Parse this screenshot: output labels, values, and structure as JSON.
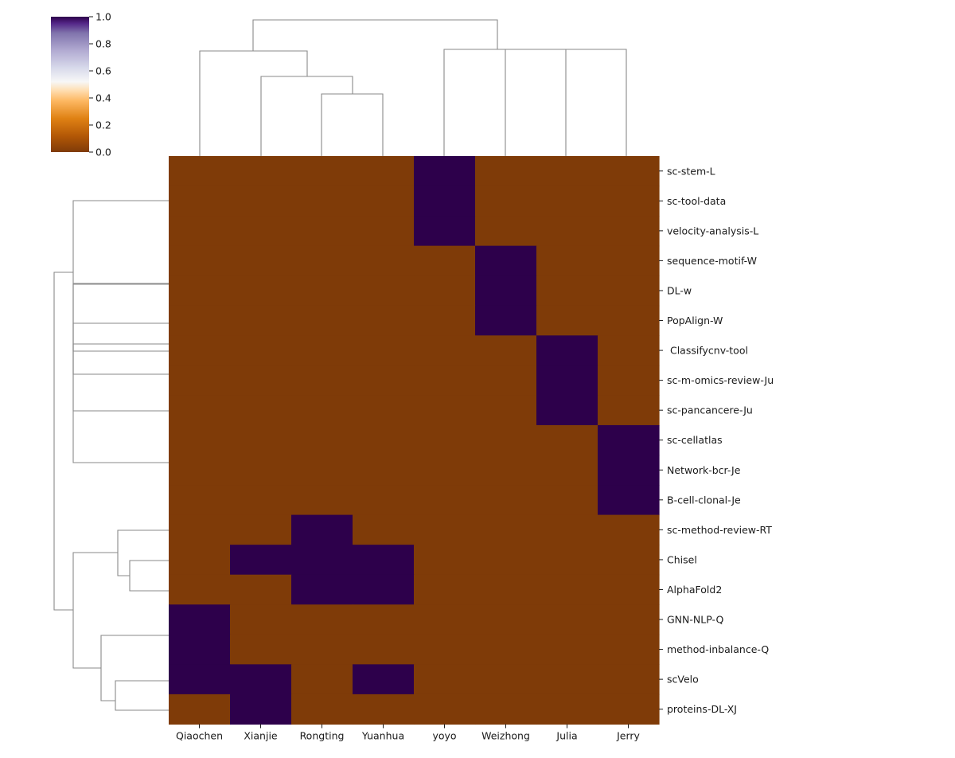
{
  "chart_data": {
    "type": "heatmap",
    "subtype": "clustermap",
    "columns": [
      "Qiaochen",
      "Xianjie",
      "Rongting",
      "Yuanhua",
      "yoyo",
      "Weizhong",
      "Julia",
      "Jerry"
    ],
    "rows": [
      "sc-stem-L",
      "sc-tool-data",
      "velocity-analysis-L",
      "sequence-motif-W",
      "DL-w",
      "PopAlign-W",
      " Classifycnv-tool",
      "sc-m-omics-review-Ju",
      "sc-pancancere-Ju",
      "sc-cellatlas",
      "Network-bcr-Je",
      "B-cell-clonal-Je",
      "sc-method-review-RT",
      "Chisel",
      "AlphaFold2",
      "GNN-NLP-Q",
      "method-inbalance-Q",
      "scVelo",
      "proteins-DL-XJ"
    ],
    "values": [
      [
        0,
        0,
        0,
        0,
        1,
        0,
        0,
        0
      ],
      [
        0,
        0,
        0,
        0,
        1,
        0,
        0,
        0
      ],
      [
        0,
        0,
        0,
        0,
        1,
        0,
        0,
        0
      ],
      [
        0,
        0,
        0,
        0,
        0,
        1,
        0,
        0
      ],
      [
        0,
        0,
        0,
        0,
        0,
        1,
        0,
        0
      ],
      [
        0,
        0,
        0,
        0,
        0,
        1,
        0,
        0
      ],
      [
        0,
        0,
        0,
        0,
        0,
        0,
        1,
        0
      ],
      [
        0,
        0,
        0,
        0,
        0,
        0,
        1,
        0
      ],
      [
        0,
        0,
        0,
        0,
        0,
        0,
        1,
        0
      ],
      [
        0,
        0,
        0,
        0,
        0,
        0,
        0,
        1
      ],
      [
        0,
        0,
        0,
        0,
        0,
        0,
        0,
        1
      ],
      [
        0,
        0,
        0,
        0,
        0,
        0,
        0,
        1
      ],
      [
        0,
        0,
        1,
        0,
        0,
        0,
        0,
        0
      ],
      [
        0,
        1,
        1,
        1,
        0,
        0,
        0,
        0
      ],
      [
        0,
        0,
        1,
        1,
        0,
        0,
        0,
        0
      ],
      [
        1,
        0,
        0,
        0,
        0,
        0,
        0,
        0
      ],
      [
        1,
        0,
        0,
        0,
        0,
        0,
        0,
        0
      ],
      [
        1,
        1,
        0,
        1,
        0,
        0,
        0,
        0
      ],
      [
        0,
        1,
        0,
        0,
        0,
        0,
        0,
        0
      ]
    ],
    "colorbar": {
      "range": [
        0,
        1
      ],
      "ticks": [
        "0.0",
        "0.2",
        "0.4",
        "0.6",
        "0.8",
        "1.0"
      ],
      "colormap": "PuOr",
      "low_color": "#7f3b08",
      "high_color": "#2d004b"
    },
    "dendrogram_color": "#8a8a8a",
    "grid": false,
    "legend": "colorbar top-left"
  }
}
